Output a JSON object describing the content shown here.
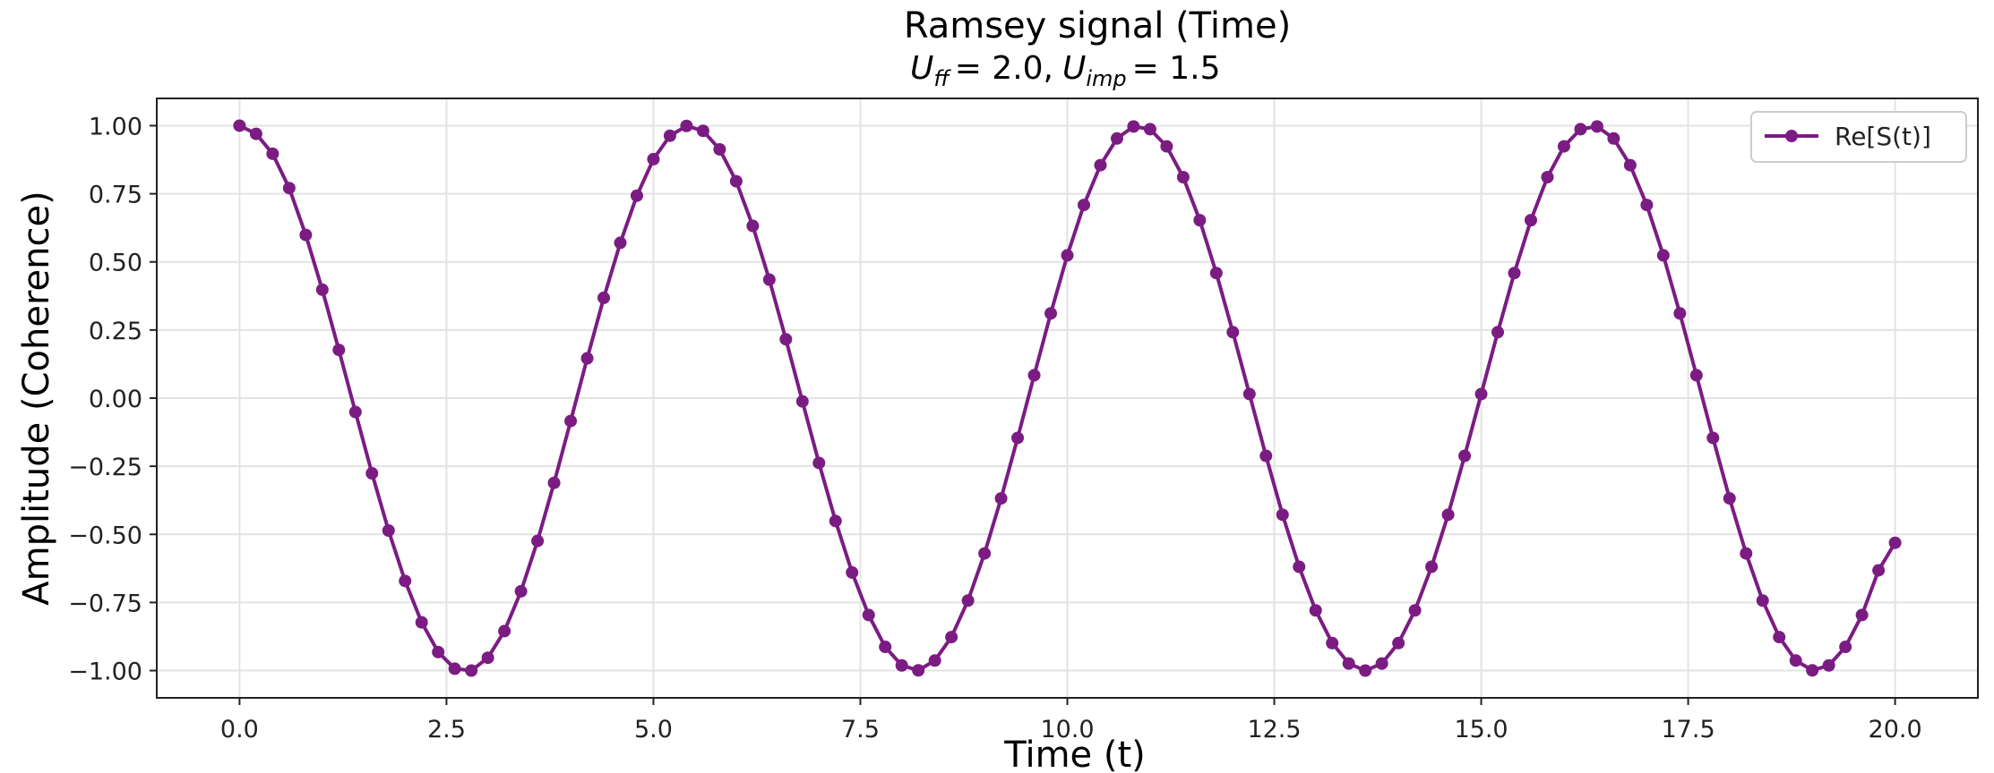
{
  "chart_data": {
    "type": "line",
    "title": "Ramsey signal (Time)",
    "subtitle": {
      "u_ff_symbol": "U",
      "u_ff_sub": "ff",
      "u_ff_value": "= 2.0,",
      "u_imp_symbol": "U",
      "u_imp_sub": "imp",
      "u_imp_value": "= 1.5"
    },
    "xlabel": "Time (t)",
    "ylabel": "Amplitude (Coherence)",
    "xlim": [
      -1.0,
      21.0
    ],
    "ylim": [
      -1.1,
      1.1
    ],
    "x_ticks": [
      "0.0",
      "2.5",
      "5.0",
      "7.5",
      "10.0",
      "12.5",
      "15.0",
      "17.5",
      "20.0"
    ],
    "y_ticks": [
      "1.00",
      "0.75",
      "0.50",
      "0.25",
      "0.00",
      "−0.25",
      "−0.50",
      "−0.75",
      "−1.00"
    ],
    "grid": true,
    "legend_position": "top-right",
    "color": "#7b1c83",
    "series": [
      {
        "name": "Re[S(t)]",
        "x_start": 0,
        "x_end": 20,
        "num_points": 101,
        "values": [
          1.0,
          0.97,
          0.897,
          0.771,
          0.599,
          0.398,
          0.177,
          -0.051,
          -0.276,
          -0.486,
          -0.671,
          -0.823,
          -0.932,
          -0.993,
          -1.0,
          -0.953,
          -0.855,
          -0.709,
          -0.524,
          -0.311,
          -0.084,
          0.146,
          0.368,
          0.57,
          0.743,
          0.877,
          0.963,
          0.999,
          0.981,
          0.913,
          0.796,
          0.632,
          0.435,
          0.216,
          -0.012,
          -0.238,
          -0.451,
          -0.64,
          -0.796,
          -0.913,
          -0.981,
          -0.999,
          -0.963,
          -0.877,
          -0.743,
          -0.57,
          -0.368,
          -0.146,
          0.084,
          0.311,
          0.524,
          0.709,
          0.855,
          0.953,
          0.997,
          0.987,
          0.924,
          0.811,
          0.653,
          0.459,
          0.242,
          0.015,
          -0.212,
          -0.428,
          -0.619,
          -0.779,
          -0.899,
          -0.974,
          -1.0,
          -0.974,
          -0.899,
          -0.779,
          -0.619,
          -0.428,
          -0.212,
          0.015,
          0.242,
          0.459,
          0.653,
          0.811,
          0.924,
          0.987,
          0.997,
          0.953,
          0.855,
          0.709,
          0.524,
          0.311,
          0.084,
          -0.146,
          -0.368,
          -0.57,
          -0.743,
          -0.877,
          -0.963,
          -0.999,
          -0.981,
          -0.913,
          -0.796,
          -0.632,
          -0.531
        ]
      }
    ]
  }
}
